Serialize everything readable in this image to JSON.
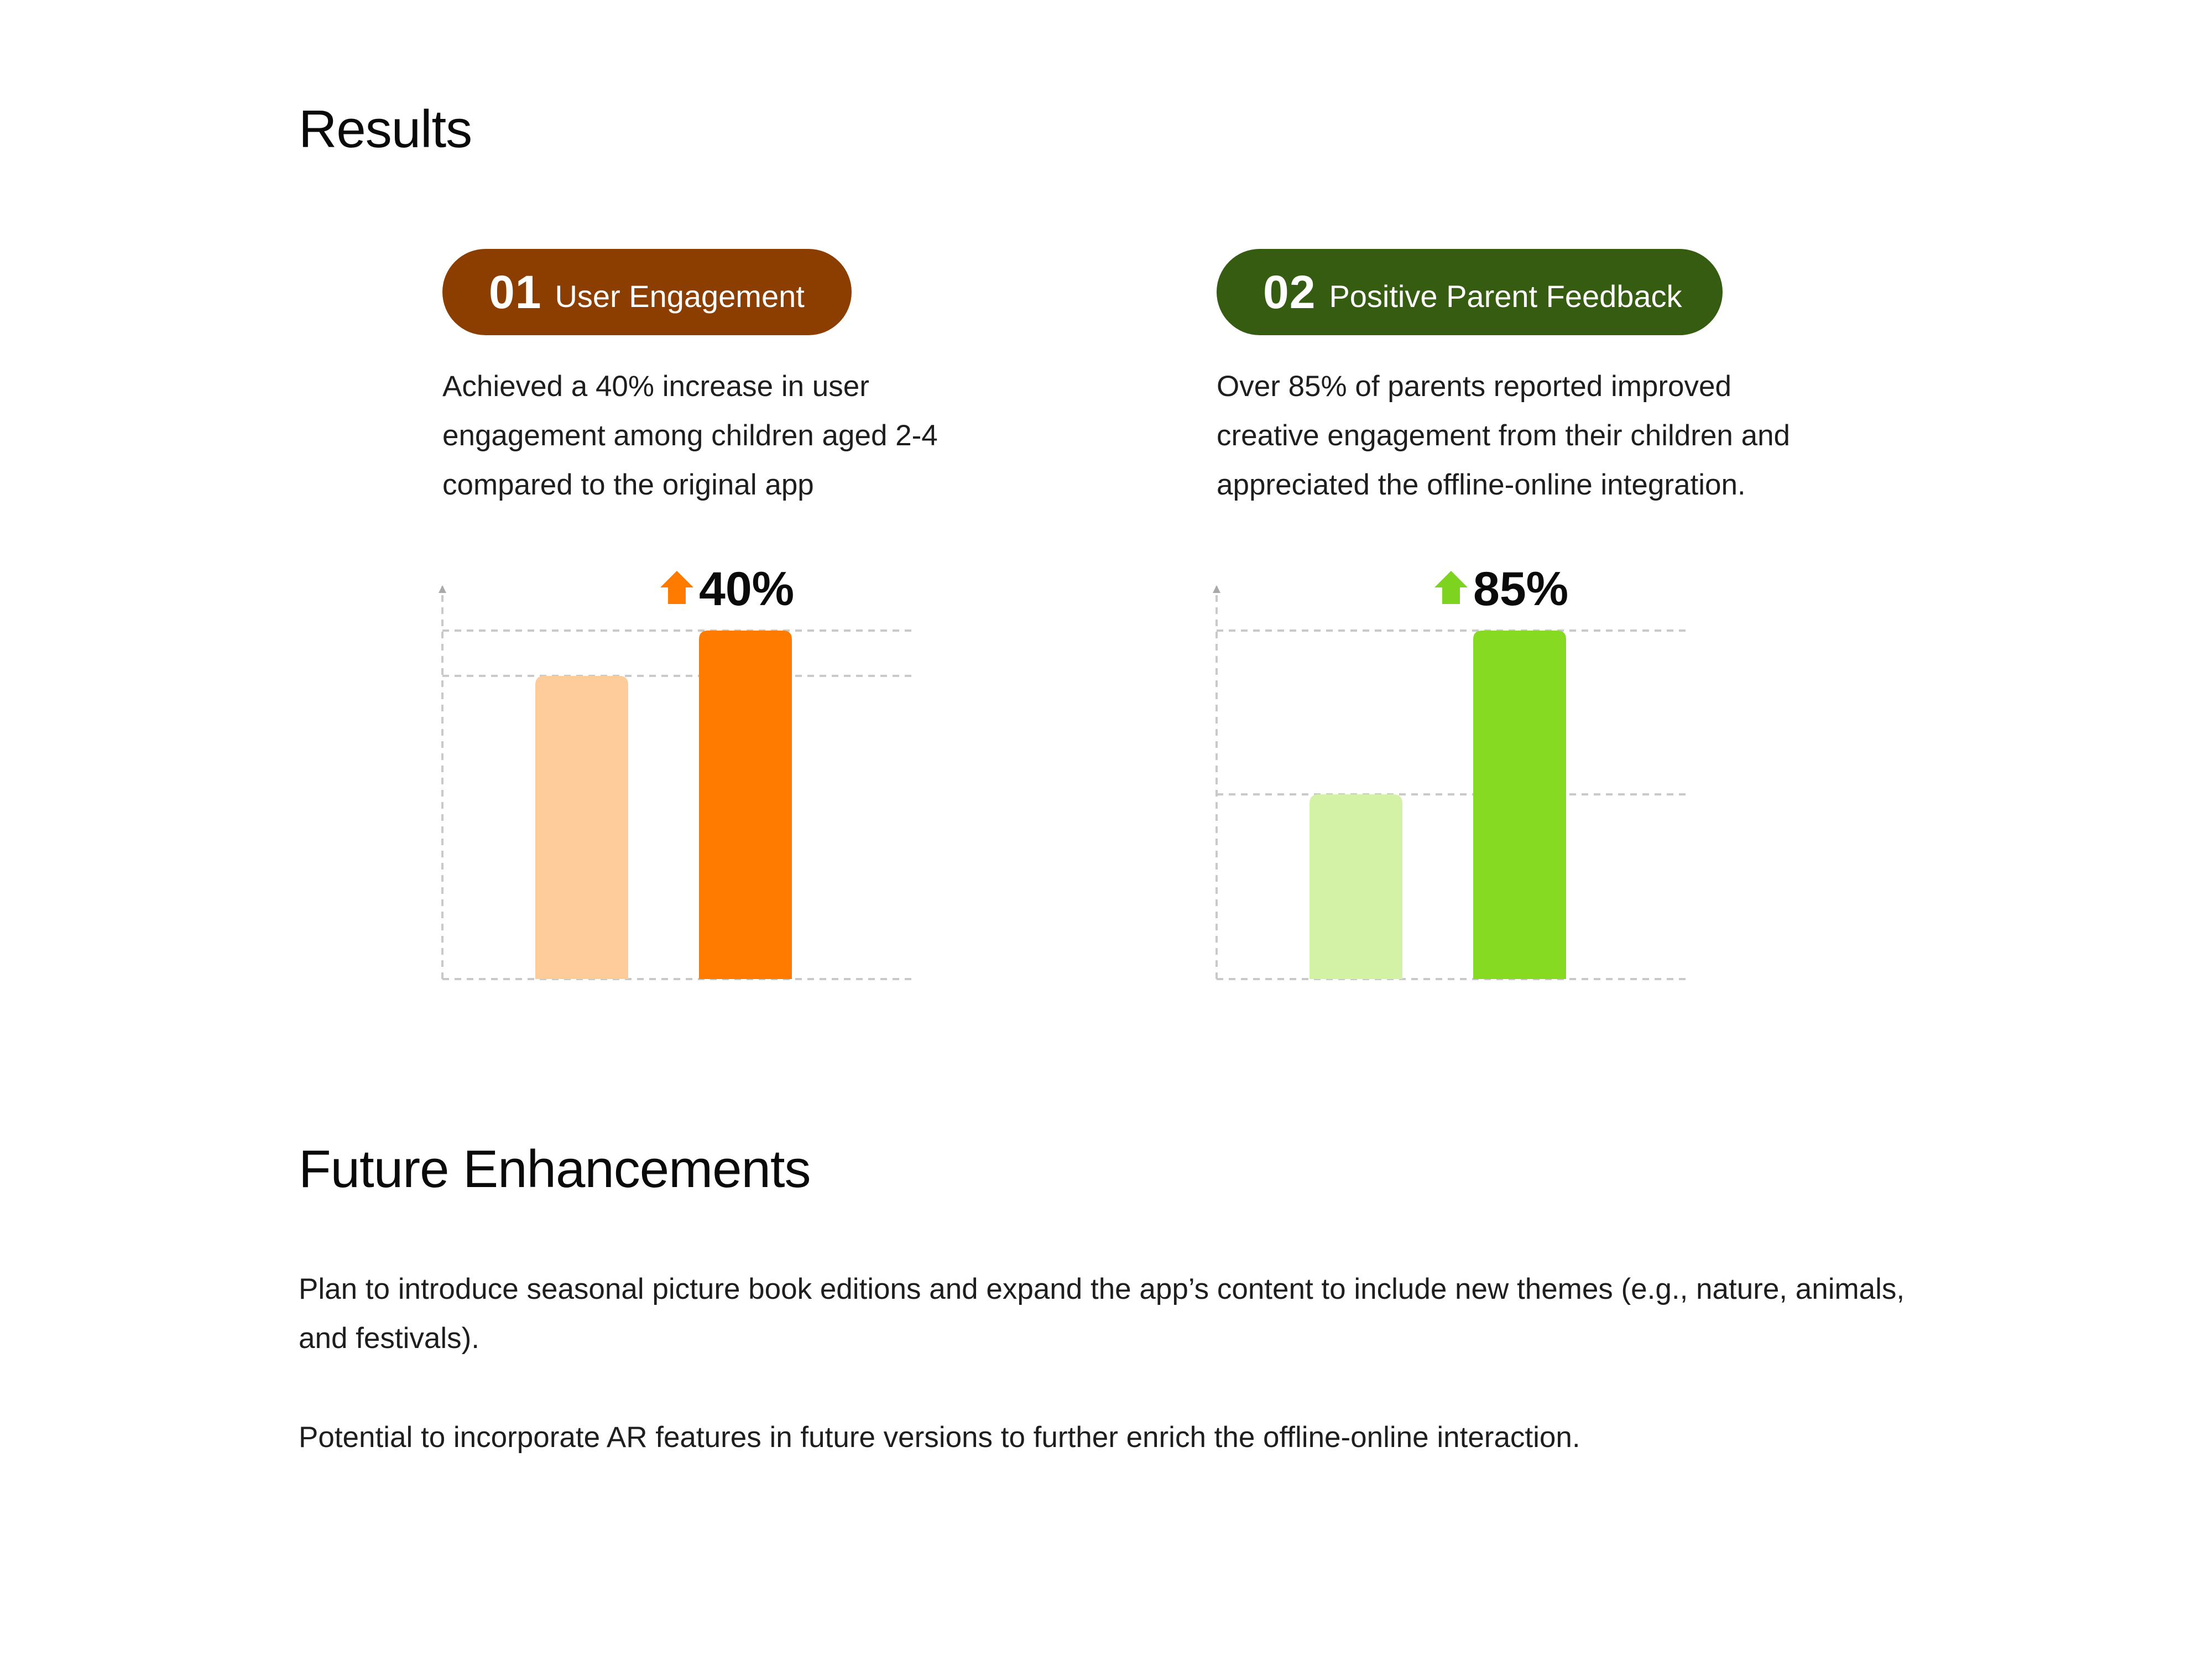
{
  "results": {
    "title": "Results",
    "cards": [
      {
        "number": "01",
        "label": "User Engagement",
        "pill_color": "#8B3E00",
        "description_lines": [
          "Achieved a 40% increase in user",
          "engagement among children aged 2-4",
          "compared to the original app"
        ],
        "metric": "40%",
        "arrow_icon": "arrow-up-icon",
        "arrow_color": "#FF7B00"
      },
      {
        "number": "02",
        "label": "Positive Parent Feedback",
        "pill_color": "#355C10",
        "description_lines": [
          "Over 85% of parents reported improved",
          "creative engagement from their children and",
          "appreciated the offline-online integration."
        ],
        "metric": "85%",
        "arrow_icon": "arrow-up-icon",
        "arrow_color": "#7ED321"
      }
    ]
  },
  "chart_data": [
    {
      "type": "bar",
      "title": "",
      "categories": [
        "",
        ""
      ],
      "values": [
        87,
        100
      ],
      "colors": [
        "#FECB9A",
        "#FF7B00"
      ],
      "ylim": [
        0,
        100
      ],
      "grid": true,
      "annotation": "40%"
    },
    {
      "type": "bar",
      "title": "",
      "categories": [
        "",
        ""
      ],
      "values": [
        53,
        100
      ],
      "colors": [
        "#D3F2A6",
        "#86DB22"
      ],
      "ylim": [
        0,
        100
      ],
      "grid": true,
      "annotation": "85%"
    }
  ],
  "future": {
    "title": "Future Enhancements",
    "paragraphs": [
      "Plan to introduce seasonal picture book editions and expand the app’s content to include new themes (e.g., nature, animals, and festivals).",
      "Potential to incorporate AR features in future versions to further enrich the offline-online interaction."
    ]
  }
}
